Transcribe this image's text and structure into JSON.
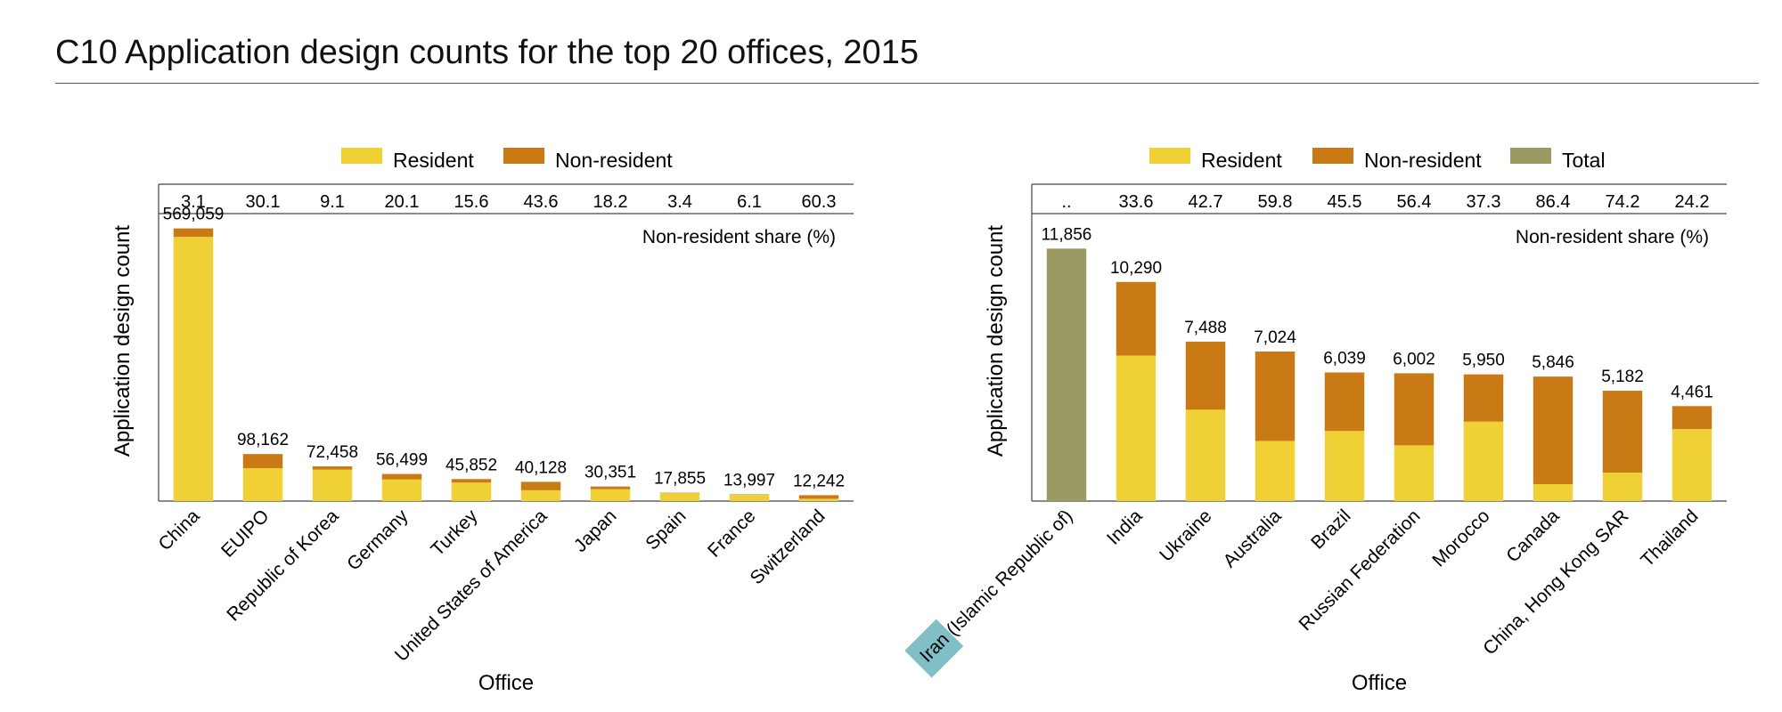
{
  "title": "C10 Application design counts for the top 20 offices, 2015",
  "colors": {
    "resident": "#EFD035",
    "non_resident": "#C97A14",
    "total": "#9B9A63",
    "highlight": "#7FBFC5"
  },
  "chart_data": [
    {
      "type": "bar",
      "stacked": true,
      "legend": [
        "Resident",
        "Non-resident"
      ],
      "legend_position": "top-center",
      "xlabel": "Office",
      "ylabel": "Application design count",
      "share_title": "Non-resident share (%)",
      "ylim": [
        0,
        600000
      ],
      "categories": [
        "China",
        "EUIPO",
        "Republic of Korea",
        "Germany",
        "Turkey",
        "United States of America",
        "Japan",
        "Spain",
        "France",
        "Switzerland"
      ],
      "totals": [
        569059,
        98162,
        72458,
        56499,
        45852,
        40128,
        30351,
        17855,
        13997,
        12242
      ],
      "total_labels": [
        "569,059",
        "98,162",
        "72,458",
        "56,499",
        "45,852",
        "40,128",
        "30,351",
        "17,855",
        "13,997",
        "12,242"
      ],
      "share_labels": [
        "3.1",
        "30.1",
        "9.1",
        "20.1",
        "15.6",
        "43.6",
        "18.2",
        "3.4",
        "6.1",
        "60.3"
      ],
      "non_resident_share": [
        3.1,
        30.1,
        9.1,
        20.1,
        15.6,
        43.6,
        18.2,
        3.4,
        6.1,
        60.3
      ]
    },
    {
      "type": "bar",
      "stacked": true,
      "legend": [
        "Resident",
        "Non-resident",
        "Total"
      ],
      "legend_position": "top-center",
      "xlabel": "Office",
      "ylabel": "Application design count",
      "share_title": "Non-resident share (%)",
      "ylim": [
        0,
        13500
      ],
      "highlight_word": "Iran",
      "categories": [
        "Iran (Islamic Republic of)",
        "India",
        "Ukraine",
        "Australia",
        "Brazil",
        "Russian Federation",
        "Morocco",
        "Canada",
        "China, Hong Kong SAR",
        "Thailand"
      ],
      "totals": [
        11856,
        10290,
        7488,
        7024,
        6039,
        6002,
        5950,
        5846,
        5182,
        4461
      ],
      "total_labels": [
        "11,856",
        "10,290",
        "7,488",
        "7,024",
        "6,039",
        "6,002",
        "5,950",
        "5,846",
        "5,182",
        "4,461"
      ],
      "share_labels": [
        "..",
        "33.6",
        "42.7",
        "59.8",
        "45.5",
        "56.4",
        "37.3",
        "86.4",
        "74.2",
        "24.2"
      ],
      "non_resident_share": [
        null,
        33.6,
        42.7,
        59.8,
        45.5,
        56.4,
        37.3,
        86.4,
        74.2,
        24.2
      ]
    }
  ]
}
